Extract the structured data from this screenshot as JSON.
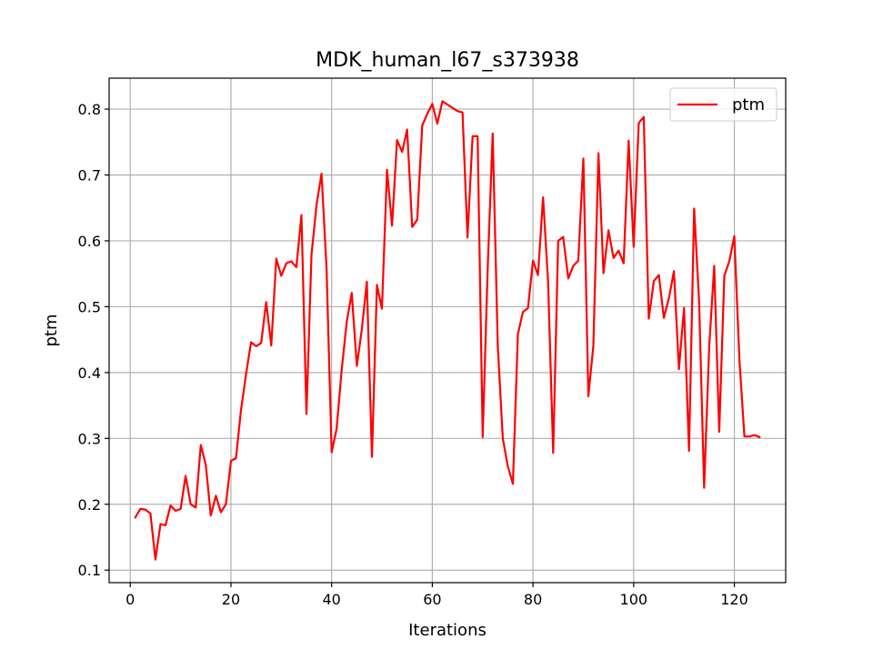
{
  "chart_data": {
    "type": "line",
    "title": "MDK_human_l67_s373938",
    "xlabel": "Iterations",
    "ylabel": "ptm",
    "xlim": [
      -4.2,
      130.2
    ],
    "ylim": [
      0.081,
      0.847
    ],
    "xticks": [
      0,
      20,
      40,
      60,
      80,
      100,
      120
    ],
    "yticks": [
      0.1,
      0.2,
      0.3,
      0.4,
      0.5,
      0.6,
      0.7,
      0.8
    ],
    "xtick_labels": [
      "0",
      "20",
      "40",
      "60",
      "80",
      "100",
      "120"
    ],
    "ytick_labels": [
      "0.1",
      "0.2",
      "0.3",
      "0.4",
      "0.5",
      "0.6",
      "0.7",
      "0.8"
    ],
    "grid": true,
    "legend_position": "upper right",
    "series": [
      {
        "name": "ptm",
        "color": "#ff0000",
        "x": [
          1,
          2,
          3,
          4,
          5,
          6,
          7,
          8,
          9,
          10,
          11,
          12,
          13,
          14,
          15,
          16,
          17,
          18,
          19,
          20,
          21,
          22,
          23,
          24,
          25,
          26,
          27,
          28,
          29,
          30,
          31,
          32,
          33,
          34,
          35,
          36,
          37,
          38,
          39,
          40,
          41,
          42,
          43,
          44,
          45,
          46,
          47,
          48,
          49,
          50,
          51,
          52,
          53,
          54,
          55,
          56,
          57,
          58,
          59,
          60,
          61,
          62,
          63,
          64,
          65,
          66,
          67,
          68,
          69,
          70,
          71,
          72,
          73,
          74,
          75,
          76,
          77,
          78,
          79,
          80,
          81,
          82,
          83,
          84,
          85,
          86,
          87,
          88,
          89,
          90,
          91,
          92,
          93,
          94,
          95,
          96,
          97,
          98,
          99,
          100,
          101,
          102,
          103,
          104,
          105,
          106,
          107,
          108,
          109,
          110,
          111,
          112,
          113,
          114,
          115,
          116,
          117,
          118,
          119,
          120,
          121,
          122,
          123,
          124,
          125
        ],
        "y": [
          0.18,
          0.193,
          0.192,
          0.186,
          0.116,
          0.17,
          0.168,
          0.198,
          0.19,
          0.193,
          0.243,
          0.2,
          0.195,
          0.29,
          0.26,
          0.183,
          0.213,
          0.188,
          0.2,
          0.266,
          0.27,
          0.343,
          0.398,
          0.446,
          0.44,
          0.445,
          0.507,
          0.441,
          0.573,
          0.547,
          0.566,
          0.569,
          0.56,
          0.639,
          0.337,
          0.578,
          0.655,
          0.702,
          0.558,
          0.279,
          0.315,
          0.405,
          0.477,
          0.521,
          0.41,
          0.466,
          0.538,
          0.272,
          0.533,
          0.497,
          0.708,
          0.623,
          0.753,
          0.735,
          0.769,
          0.621,
          0.632,
          0.775,
          0.793,
          0.808,
          0.778,
          0.812,
          0.807,
          0.802,
          0.797,
          0.795,
          0.605,
          0.759,
          0.759,
          0.302,
          0.559,
          0.763,
          0.44,
          0.3,
          0.258,
          0.231,
          0.458,
          0.492,
          0.498,
          0.57,
          0.548,
          0.666,
          0.538,
          0.278,
          0.6,
          0.606,
          0.543,
          0.562,
          0.57,
          0.725,
          0.364,
          0.441,
          0.733,
          0.551,
          0.616,
          0.574,
          0.585,
          0.566,
          0.752,
          0.591,
          0.779,
          0.788,
          0.482,
          0.539,
          0.548,
          0.483,
          0.513,
          0.554,
          0.405,
          0.498,
          0.281,
          0.649,
          0.507,
          0.225,
          0.44,
          0.562,
          0.31,
          0.547,
          0.569,
          0.607,
          0.42,
          0.303,
          0.303,
          0.305,
          0.302
        ]
      }
    ]
  }
}
